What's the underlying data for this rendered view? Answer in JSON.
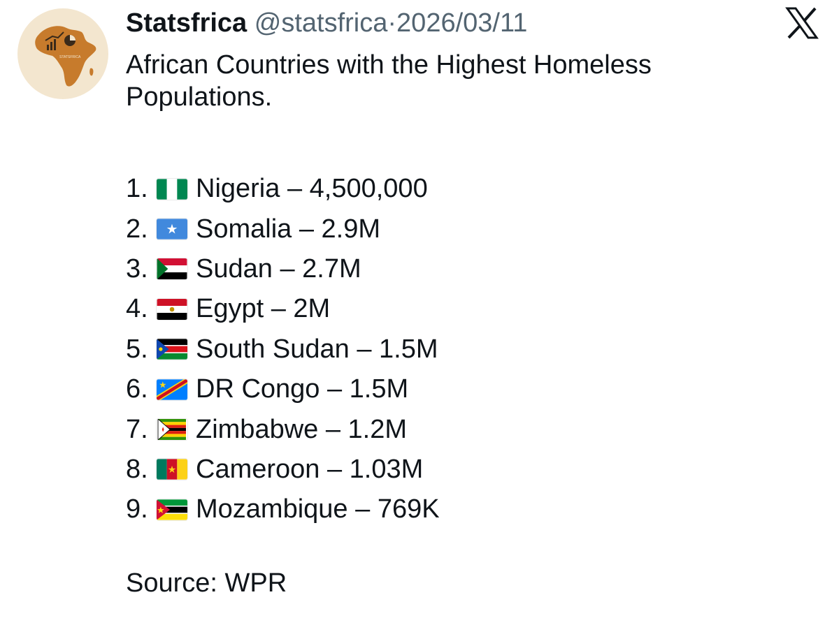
{
  "author": {
    "name": "Statsfrica",
    "handle": "@statsfrica",
    "separator": "·",
    "date": "2026/03/11",
    "avatar_text": "STATSFRICA"
  },
  "tweet": {
    "title": "African Countries with the Highest Homeless Populations.",
    "items": [
      {
        "rank": "1.",
        "country": "Nigeria",
        "value": "– 4,500,000",
        "flag": "nigeria-flag-icon"
      },
      {
        "rank": "2.",
        "country": "Somalia",
        "value": "– 2.9M",
        "flag": "somalia-flag-icon"
      },
      {
        "rank": "3.",
        "country": "Sudan",
        "value": "– 2.7M",
        "flag": "sudan-flag-icon"
      },
      {
        "rank": "4.",
        "country": "Egypt",
        "value": "– 2M",
        "flag": "egypt-flag-icon"
      },
      {
        "rank": "5.",
        "country": "South Sudan",
        "value": "– 1.5M",
        "flag": "south-sudan-flag-icon"
      },
      {
        "rank": "6.",
        "country": "DR Congo",
        "value": "– 1.5M",
        "flag": "dr-congo-flag-icon"
      },
      {
        "rank": "7.",
        "country": "Zimbabwe",
        "value": "– 1.2M",
        "flag": "zimbabwe-flag-icon"
      },
      {
        "rank": "8.",
        "country": "Cameroon",
        "value": "– 1.03M",
        "flag": "cameroon-flag-icon"
      },
      {
        "rank": "9.",
        "country": "Mozambique",
        "value": "– 769K",
        "flag": "mozambique-flag-icon"
      }
    ],
    "source": "Source: WPR"
  },
  "icons": {
    "platform": "x-logo-icon",
    "avatar": "africa-map-icon"
  },
  "colors": {
    "text": "#0f1419",
    "muted": "#536471",
    "avatar_bg": "#f3e6cf",
    "africa": "#c77b2c"
  }
}
